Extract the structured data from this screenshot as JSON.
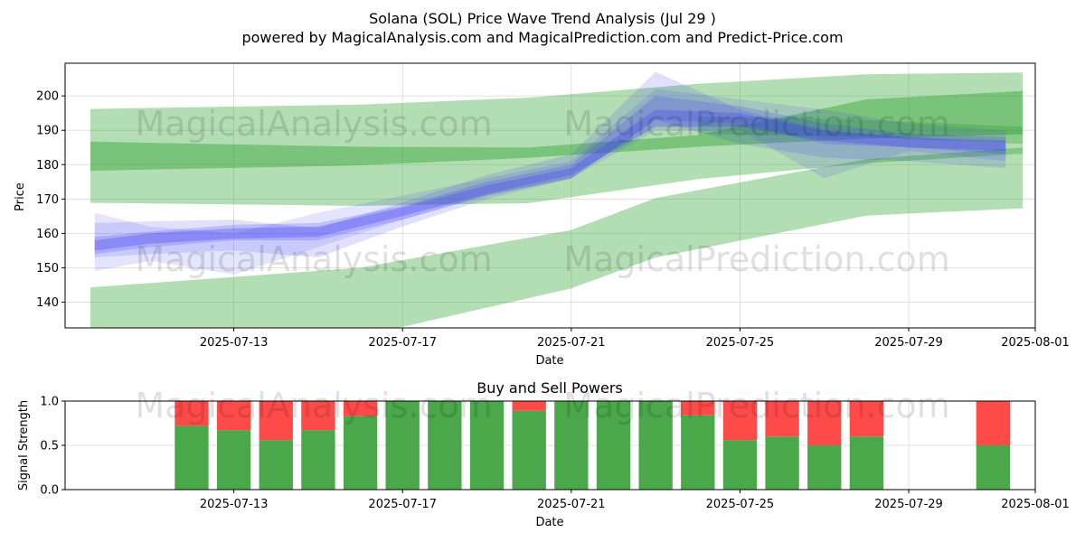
{
  "title": "Solana (SOL) Price Wave Trend Analysis (Jul 29 )",
  "subtitle": "powered by MagicalAnalysis.com and MagicalPrediction.com and Predict-Price.com",
  "watermarks": [
    "MagicalAnalysis.com",
    "MagicalPrediction.com"
  ],
  "colors": {
    "green": "#2ca02c",
    "blue": "#3f3ff0",
    "buy": "#4aa84a",
    "sell": "#ff4a4a",
    "grid": "#d9d9d9"
  },
  "chart_data": [
    {
      "type": "area",
      "title": "",
      "xlabel": "Date",
      "ylabel": "Price",
      "grid": true,
      "xlim": [
        "2025-07-09",
        "2025-08-01"
      ],
      "ylim": [
        132.5,
        209.5
      ],
      "x_ticks": [
        "2025-07-13",
        "2025-07-17",
        "2025-07-21",
        "2025-07-25",
        "2025-07-29",
        "2025-08-01"
      ],
      "y_ticks": [
        140,
        150,
        160,
        170,
        180,
        190,
        200
      ],
      "green_bands": [
        {
          "x": [
            "2025-07-09.6",
            "2025-07-16",
            "2025-07-20",
            "2025-07-24",
            "2025-07-28",
            "2025-07-31.7"
          ],
          "upper": [
            196.2,
            197.5,
            199.5,
            203.5,
            206.3,
            206.8
          ],
          "lower": [
            168.9,
            168.0,
            168.8,
            175.8,
            180.4,
            183.2
          ]
        },
        {
          "x": [
            "2025-07-09.6",
            "2025-07-16",
            "2025-07-21",
            "2025-07-23",
            "2025-07-28",
            "2025-07-31.7"
          ],
          "upper": [
            144.3,
            150.0,
            161.0,
            170.3,
            181.6,
            185.0
          ],
          "lower": [
            128.0,
            130.0,
            144.0,
            153.0,
            165.2,
            167.3
          ]
        },
        {
          "x": [
            "2025-07-09.6",
            "2025-07-16",
            "2025-07-20",
            "2025-07-24",
            "2025-07-28",
            "2025-07-31.7"
          ],
          "upper": [
            186.7,
            185.2,
            185.0,
            188.6,
            199.0,
            201.4
          ],
          "lower": [
            178.2,
            179.8,
            182.0,
            185.2,
            187.6,
            188.8
          ]
        },
        {
          "x": [
            "2025-07-24",
            "2025-07-28",
            "2025-07-31.7"
          ],
          "upper": [
            194.0,
            193.0,
            191.0
          ],
          "lower": [
            189.0,
            188.0,
            186.0
          ]
        }
      ],
      "blue_waves": [
        {
          "x": [
            "2025-07-09.7",
            "2025-07-11",
            "2025-07-13",
            "2025-07-15",
            "2025-07-17",
            "2025-07-19",
            "2025-07-21",
            "2025-07-23",
            "2025-07-25",
            "2025-07-27",
            "2025-07-29",
            "2025-07-31.3"
          ],
          "upper": [
            163.0,
            163.5,
            164.0,
            161.5,
            169.0,
            177.0,
            183.0,
            207.0,
            196.0,
            190.0,
            188.0,
            186.0
          ],
          "lower": [
            153.0,
            154.0,
            155.0,
            153.0,
            162.0,
            170.0,
            176.0,
            193.0,
            186.0,
            182.0,
            181.0,
            179.0
          ]
        },
        {
          "x": [
            "2025-07-09.7",
            "2025-07-11",
            "2025-07-13",
            "2025-07-15",
            "2025-07-17",
            "2025-07-19",
            "2025-07-21",
            "2025-07-23",
            "2025-07-25",
            "2025-07-27",
            "2025-07-29",
            "2025-07-31.3"
          ],
          "upper": [
            166.0,
            162.0,
            160.0,
            166.0,
            171.0,
            176.0,
            181.0,
            202.0,
            199.0,
            196.0,
            192.0,
            190.0
          ],
          "lower": [
            149.0,
            152.0,
            148.0,
            156.0,
            164.0,
            171.0,
            176.0,
            190.0,
            190.0,
            176.0,
            184.0,
            181.0
          ]
        },
        {
          "x": [
            "2025-07-09.7",
            "2025-07-11",
            "2025-07-13",
            "2025-07-15",
            "2025-07-17",
            "2025-07-19",
            "2025-07-21",
            "2025-07-23",
            "2025-07-25",
            "2025-07-27",
            "2025-07-29",
            "2025-07-31.3"
          ],
          "upper": [
            159.0,
            160.5,
            162.5,
            163.0,
            168.0,
            175.0,
            180.0,
            200.0,
            197.0,
            192.0,
            189.0,
            188.0
          ],
          "lower": [
            154.0,
            156.0,
            158.0,
            158.0,
            164.0,
            171.0,
            176.0,
            193.0,
            192.0,
            186.0,
            185.0,
            183.0
          ]
        },
        {
          "x": [
            "2025-07-09.7",
            "2025-07-11",
            "2025-07-13",
            "2025-07-15",
            "2025-07-17",
            "2025-07-19",
            "2025-07-21",
            "2025-07-23",
            "2025-07-25",
            "2025-07-27",
            "2025-07-29",
            "2025-07-31.3"
          ],
          "upper": [
            158.0,
            160.0,
            161.5,
            162.0,
            167.5,
            174.0,
            179.0,
            196.0,
            195.0,
            190.0,
            188.0,
            187.0
          ],
          "lower": [
            155.0,
            157.0,
            158.5,
            159.0,
            165.0,
            171.5,
            177.0,
            191.0,
            191.0,
            187.0,
            185.0,
            184.0
          ]
        }
      ]
    },
    {
      "type": "bar",
      "title": "Buy and Sell Powers",
      "xlabel": "Date",
      "ylabel": "Signal Strength",
      "grid": true,
      "ylim": [
        0,
        1
      ],
      "y_ticks": [
        "0.0",
        "0.5",
        "1.0"
      ],
      "x_ticks": [
        "2025-07-13",
        "2025-07-17",
        "2025-07-21",
        "2025-07-25",
        "2025-07-29",
        "2025-08-01"
      ],
      "series": [
        {
          "name": "buy",
          "values": [
            0.72,
            0.67,
            0.56,
            0.67,
            0.83,
            1.0,
            1.0,
            1.0,
            0.89,
            1.0,
            1.0,
            1.0,
            0.84,
            0.56,
            0.6,
            0.5,
            0.6,
            null,
            null,
            0.5
          ]
        },
        {
          "name": "sell",
          "values": [
            0.28,
            0.33,
            0.44,
            0.33,
            0.17,
            0.0,
            0.0,
            0.0,
            0.11,
            0.0,
            0.0,
            0.0,
            0.16,
            0.44,
            0.4,
            0.5,
            0.4,
            null,
            null,
            0.5
          ]
        }
      ],
      "categories": [
        "2025-07-12",
        "2025-07-13",
        "2025-07-14",
        "2025-07-15",
        "2025-07-16",
        "2025-07-17",
        "2025-07-18",
        "2025-07-19",
        "2025-07-20",
        "2025-07-21",
        "2025-07-22",
        "2025-07-23",
        "2025-07-24",
        "2025-07-25",
        "2025-07-26",
        "2025-07-27",
        "2025-07-28",
        "2025-07-29",
        "2025-07-30",
        "2025-07-31"
      ]
    }
  ]
}
